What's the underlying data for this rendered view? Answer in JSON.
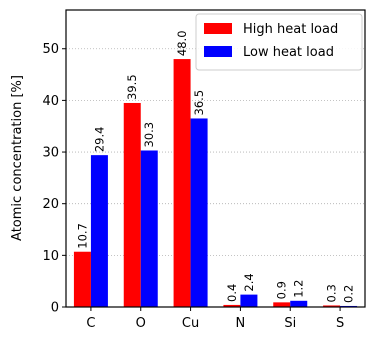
{
  "chart_data": {
    "type": "bar",
    "ylabel": "Atomic concentration [%]",
    "xlabel": "",
    "title": "",
    "ylim": [
      0,
      57.5
    ],
    "yticks": [
      0,
      10,
      20,
      30,
      40,
      50
    ],
    "grid": "horizontal-dotted",
    "legend_position": "top-right",
    "categories": [
      "C",
      "O",
      "Cu",
      "N",
      "Si",
      "S"
    ],
    "series": [
      {
        "name": "High heat load",
        "color": "#ff0000",
        "values": [
          10.7,
          39.5,
          48.0,
          0.4,
          0.9,
          0.3
        ],
        "labels": [
          "10.7",
          "39.5",
          "48.0",
          "0.4",
          "0.9",
          "0.3"
        ]
      },
      {
        "name": "Low heat load",
        "color": "#0000ff",
        "values": [
          29.4,
          30.3,
          36.5,
          2.4,
          1.2,
          0.2
        ],
        "labels": [
          "29.4",
          "30.3",
          "36.5",
          "2.4",
          "1.2",
          "0.2"
        ]
      }
    ]
  }
}
